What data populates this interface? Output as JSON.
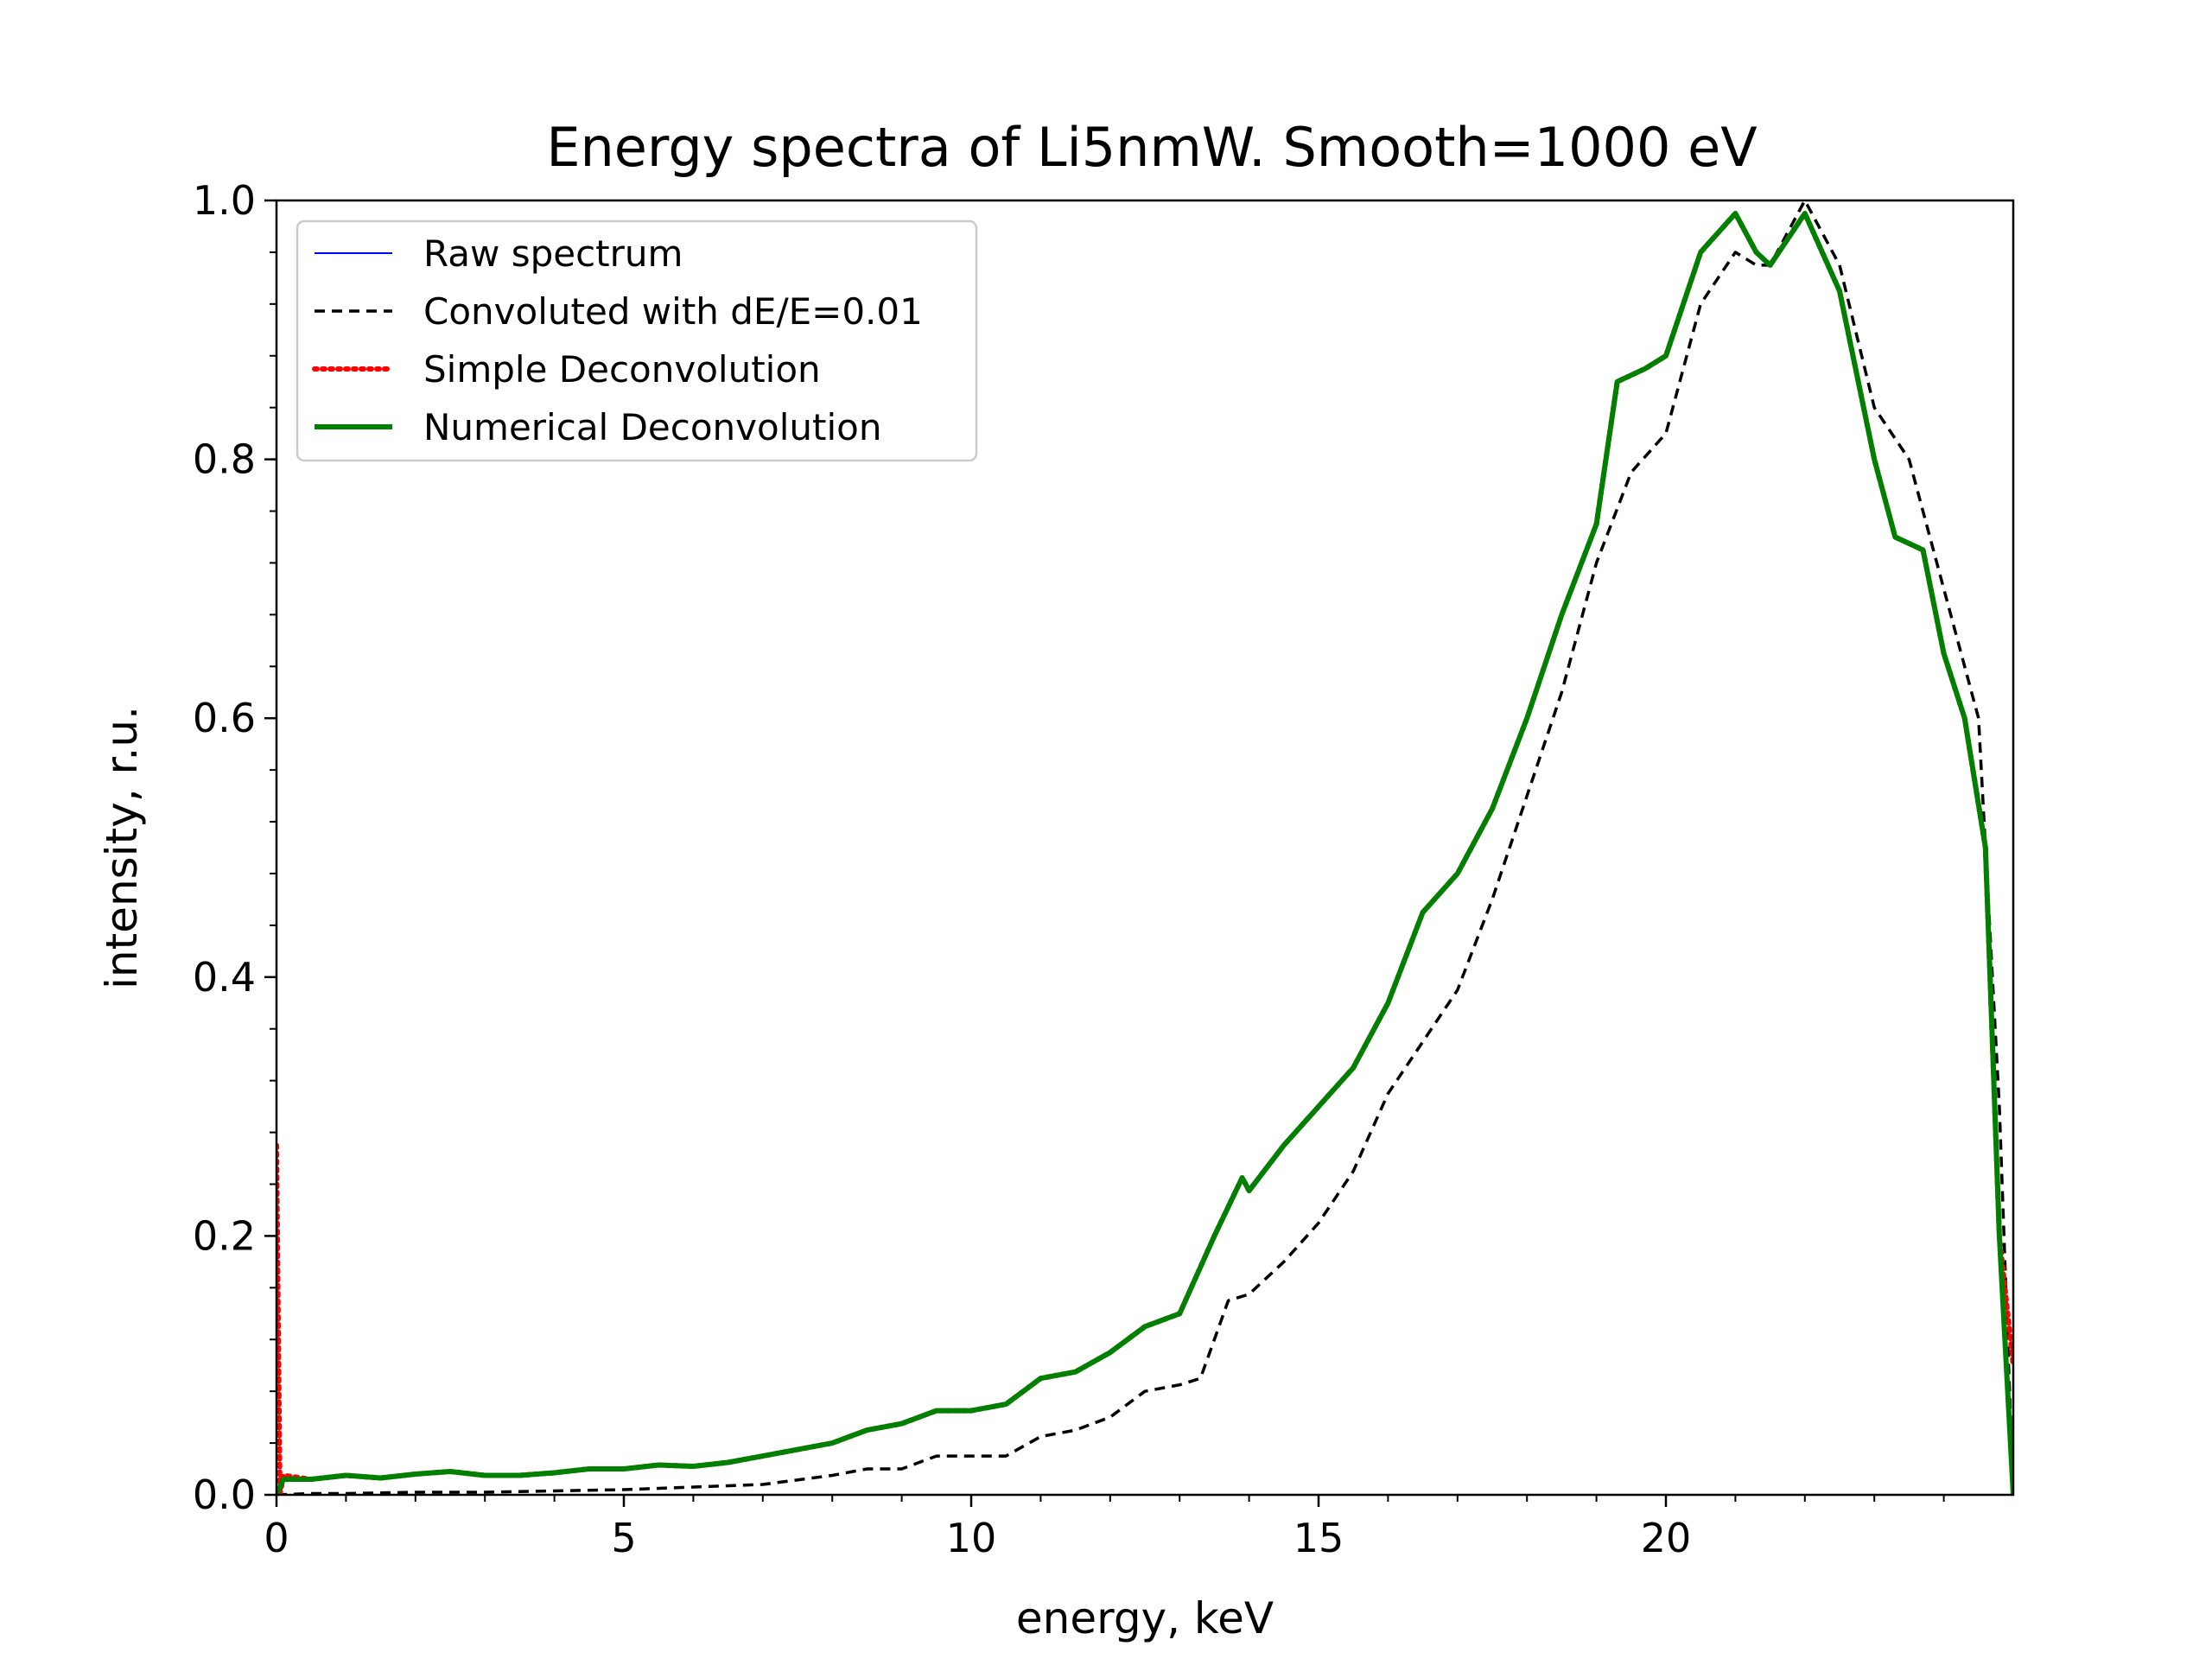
{
  "chart_data": {
    "type": "line",
    "title": "Energy spectra of Li5nmW. Smooth=1000 eV",
    "xlabel": "energy, keV",
    "ylabel": "intensity, r.u.",
    "xlim": [
      0,
      25
    ],
    "ylim": [
      0,
      1.0
    ],
    "xticks": [
      0,
      5,
      10,
      15,
      20
    ],
    "yticks": [
      0.0,
      0.2,
      0.4,
      0.6,
      0.8,
      1.0
    ],
    "xtick_labels": [
      "0",
      "5",
      "10",
      "15",
      "20"
    ],
    "ytick_labels": [
      "0.0",
      "0.2",
      "0.4",
      "0.6",
      "0.8",
      "1.0"
    ],
    "grid": false,
    "legend_position": "top-left",
    "series": [
      {
        "name": "Raw spectrum",
        "color": "#0000ff",
        "style": "solid",
        "width": "thin",
        "points": [
          [
            0,
            0.0
          ],
          [
            0.1,
            0.012
          ],
          [
            0.5,
            0.012
          ],
          [
            1,
            0.015
          ],
          [
            1.5,
            0.013
          ],
          [
            2,
            0.016
          ],
          [
            2.5,
            0.018
          ],
          [
            3,
            0.015
          ],
          [
            3.5,
            0.015
          ],
          [
            4,
            0.017
          ],
          [
            4.5,
            0.02
          ],
          [
            5,
            0.02
          ],
          [
            5.5,
            0.023
          ],
          [
            6,
            0.022
          ],
          [
            6.5,
            0.025
          ],
          [
            7,
            0.03
          ],
          [
            7.5,
            0.035
          ],
          [
            8,
            0.04
          ],
          [
            8.5,
            0.05
          ],
          [
            9,
            0.055
          ],
          [
            9.5,
            0.065
          ],
          [
            10,
            0.065
          ],
          [
            10.5,
            0.07
          ],
          [
            11,
            0.09
          ],
          [
            11.5,
            0.095
          ],
          [
            12,
            0.11
          ],
          [
            12.5,
            0.13
          ],
          [
            13,
            0.14
          ],
          [
            13.5,
            0.2
          ],
          [
            13.9,
            0.245
          ],
          [
            14,
            0.235
          ],
          [
            14.5,
            0.27
          ],
          [
            15,
            0.3
          ],
          [
            15.5,
            0.33
          ],
          [
            16,
            0.38
          ],
          [
            16.5,
            0.45
          ],
          [
            17,
            0.48
          ],
          [
            17.5,
            0.53
          ],
          [
            18,
            0.6
          ],
          [
            18.5,
            0.68
          ],
          [
            19,
            0.75
          ],
          [
            19.3,
            0.86
          ],
          [
            19.7,
            0.87
          ],
          [
            20,
            0.88
          ],
          [
            20.5,
            0.96
          ],
          [
            21,
            0.99
          ],
          [
            21.3,
            0.96
          ],
          [
            21.5,
            0.95
          ],
          [
            22,
            0.99
          ],
          [
            22.5,
            0.93
          ],
          [
            23,
            0.8
          ],
          [
            23.3,
            0.74
          ],
          [
            23.7,
            0.73
          ],
          [
            24,
            0.65
          ],
          [
            24.3,
            0.6
          ],
          [
            24.6,
            0.5
          ],
          [
            24.8,
            0.2
          ],
          [
            25,
            0.0
          ]
        ]
      },
      {
        "name": "Convoluted with dE/E=0.01",
        "color": "#000000",
        "style": "dashed",
        "width": "medium",
        "points": [
          [
            0,
            0.0
          ],
          [
            0.5,
            0.001
          ],
          [
            1,
            0.001
          ],
          [
            2,
            0.002
          ],
          [
            3,
            0.002
          ],
          [
            4,
            0.003
          ],
          [
            5,
            0.004
          ],
          [
            6,
            0.006
          ],
          [
            7,
            0.008
          ],
          [
            8,
            0.015
          ],
          [
            8.5,
            0.02
          ],
          [
            9,
            0.02
          ],
          [
            9.5,
            0.03
          ],
          [
            10,
            0.03
          ],
          [
            10.5,
            0.03
          ],
          [
            11,
            0.045
          ],
          [
            11.5,
            0.05
          ],
          [
            12,
            0.06
          ],
          [
            12.5,
            0.08
          ],
          [
            13,
            0.085
          ],
          [
            13.3,
            0.09
          ],
          [
            13.7,
            0.15
          ],
          [
            14,
            0.155
          ],
          [
            14.5,
            0.18
          ],
          [
            15,
            0.21
          ],
          [
            15.5,
            0.25
          ],
          [
            16,
            0.31
          ],
          [
            16.5,
            0.35
          ],
          [
            17,
            0.39
          ],
          [
            17.5,
            0.46
          ],
          [
            18,
            0.54
          ],
          [
            18.5,
            0.62
          ],
          [
            19,
            0.72
          ],
          [
            19.5,
            0.79
          ],
          [
            20,
            0.82
          ],
          [
            20.5,
            0.92
          ],
          [
            21,
            0.96
          ],
          [
            21.3,
            0.95
          ],
          [
            21.5,
            0.95
          ],
          [
            22,
            1.0
          ],
          [
            22.5,
            0.95
          ],
          [
            23,
            0.84
          ],
          [
            23.5,
            0.8
          ],
          [
            24,
            0.7
          ],
          [
            24.5,
            0.6
          ],
          [
            24.8,
            0.3
          ],
          [
            25,
            0.0
          ]
        ]
      },
      {
        "name": "Simple Deconvolution",
        "color": "#ff0000",
        "style": "dotted",
        "width": "thick",
        "points": [
          [
            0,
            0.27
          ],
          [
            0.05,
            0.0
          ],
          [
            0.1,
            0.015
          ],
          [
            0.5,
            0.012
          ],
          [
            1,
            0.015
          ],
          [
            1.5,
            0.013
          ],
          [
            2,
            0.016
          ],
          [
            2.5,
            0.018
          ],
          [
            3,
            0.015
          ],
          [
            3.5,
            0.015
          ],
          [
            4,
            0.017
          ],
          [
            4.5,
            0.02
          ],
          [
            5,
            0.02
          ],
          [
            5.5,
            0.023
          ],
          [
            6,
            0.022
          ],
          [
            6.5,
            0.025
          ],
          [
            7,
            0.03
          ],
          [
            7.5,
            0.035
          ],
          [
            8,
            0.04
          ],
          [
            8.5,
            0.05
          ],
          [
            9,
            0.055
          ],
          [
            9.5,
            0.065
          ],
          [
            10,
            0.065
          ],
          [
            10.5,
            0.07
          ],
          [
            11,
            0.09
          ],
          [
            11.5,
            0.095
          ],
          [
            12,
            0.11
          ],
          [
            12.5,
            0.13
          ],
          [
            13,
            0.14
          ],
          [
            13.5,
            0.2
          ],
          [
            13.9,
            0.245
          ],
          [
            14,
            0.235
          ],
          [
            14.5,
            0.27
          ],
          [
            15,
            0.3
          ],
          [
            15.5,
            0.33
          ],
          [
            16,
            0.38
          ],
          [
            16.5,
            0.45
          ],
          [
            17,
            0.48
          ],
          [
            17.5,
            0.53
          ],
          [
            18,
            0.6
          ],
          [
            18.5,
            0.68
          ],
          [
            19,
            0.75
          ],
          [
            19.3,
            0.86
          ],
          [
            19.7,
            0.87
          ],
          [
            20,
            0.88
          ],
          [
            20.5,
            0.96
          ],
          [
            21,
            0.99
          ],
          [
            21.3,
            0.96
          ],
          [
            21.5,
            0.95
          ],
          [
            22,
            0.99
          ],
          [
            22.5,
            0.93
          ],
          [
            23,
            0.8
          ],
          [
            23.3,
            0.74
          ],
          [
            23.7,
            0.73
          ],
          [
            24,
            0.65
          ],
          [
            24.3,
            0.6
          ],
          [
            24.6,
            0.5
          ],
          [
            24.8,
            0.2
          ],
          [
            25,
            0.1
          ]
        ]
      },
      {
        "name": "Numerical Deconvolution",
        "color": "#008000",
        "style": "solid",
        "width": "thick",
        "points": [
          [
            0,
            0.0
          ],
          [
            0.1,
            0.012
          ],
          [
            0.5,
            0.012
          ],
          [
            1,
            0.015
          ],
          [
            1.5,
            0.013
          ],
          [
            2,
            0.016
          ],
          [
            2.5,
            0.018
          ],
          [
            3,
            0.015
          ],
          [
            3.5,
            0.015
          ],
          [
            4,
            0.017
          ],
          [
            4.5,
            0.02
          ],
          [
            5,
            0.02
          ],
          [
            5.5,
            0.023
          ],
          [
            6,
            0.022
          ],
          [
            6.5,
            0.025
          ],
          [
            7,
            0.03
          ],
          [
            7.5,
            0.035
          ],
          [
            8,
            0.04
          ],
          [
            8.5,
            0.05
          ],
          [
            9,
            0.055
          ],
          [
            9.5,
            0.065
          ],
          [
            10,
            0.065
          ],
          [
            10.5,
            0.07
          ],
          [
            11,
            0.09
          ],
          [
            11.5,
            0.095
          ],
          [
            12,
            0.11
          ],
          [
            12.5,
            0.13
          ],
          [
            13,
            0.14
          ],
          [
            13.5,
            0.2
          ],
          [
            13.9,
            0.245
          ],
          [
            14,
            0.235
          ],
          [
            14.5,
            0.27
          ],
          [
            15,
            0.3
          ],
          [
            15.5,
            0.33
          ],
          [
            16,
            0.38
          ],
          [
            16.5,
            0.45
          ],
          [
            17,
            0.48
          ],
          [
            17.5,
            0.53
          ],
          [
            18,
            0.6
          ],
          [
            18.5,
            0.68
          ],
          [
            19,
            0.75
          ],
          [
            19.3,
            0.86
          ],
          [
            19.7,
            0.87
          ],
          [
            20,
            0.88
          ],
          [
            20.5,
            0.96
          ],
          [
            21,
            0.99
          ],
          [
            21.3,
            0.96
          ],
          [
            21.5,
            0.95
          ],
          [
            22,
            0.99
          ],
          [
            22.5,
            0.93
          ],
          [
            23,
            0.8
          ],
          [
            23.3,
            0.74
          ],
          [
            23.7,
            0.73
          ],
          [
            24,
            0.65
          ],
          [
            24.3,
            0.6
          ],
          [
            24.6,
            0.5
          ],
          [
            24.8,
            0.2
          ],
          [
            25,
            0.0
          ]
        ]
      }
    ]
  }
}
